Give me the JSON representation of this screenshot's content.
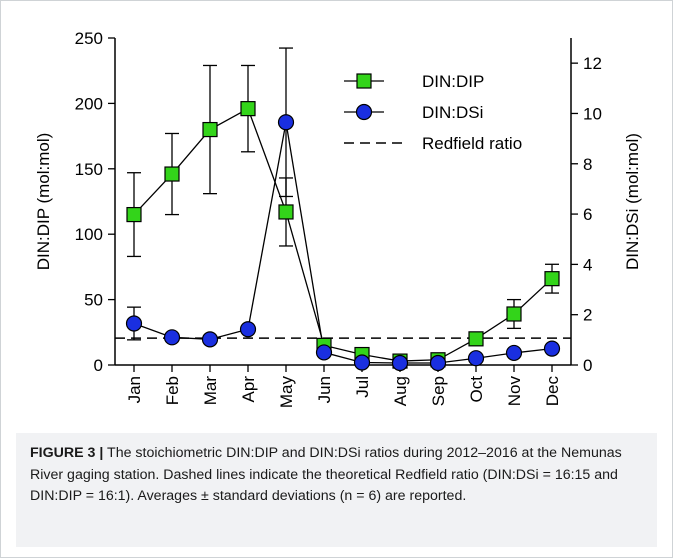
{
  "figure": {
    "caption_label": "FIGURE 3 |",
    "caption_text": "The stoichiometric DIN:DIP and DIN:DSi ratios during 2012–2016 at the Nemunas River gaging station. Dashed lines indicate the theoretical Redfield ratio (DIN:DSi = 16:15 and DIN:DIP = 16:1). Averages ± standard deviations (n = 6) are reported."
  },
  "chart_data": {
    "type": "line",
    "categories": [
      "Jan",
      "Feb",
      "Mar",
      "Apr",
      "May",
      "Jun",
      "Jul",
      "Aug",
      "Sep",
      "Oct",
      "Nov",
      "Dec"
    ],
    "left_axis": {
      "label": "DIN:DIP (mol:mol)",
      "ylim": [
        0,
        250
      ],
      "ticks": [
        0,
        50,
        100,
        150,
        200,
        250
      ]
    },
    "right_axis": {
      "label": "DIN:DSi (mol:mol)",
      "ylim": [
        0,
        13
      ],
      "ticks": [
        0,
        2,
        4,
        6,
        8,
        10,
        12
      ]
    },
    "series": [
      {
        "name": "DIN:DIP",
        "axis": "left",
        "marker": "square",
        "color": "#33d41a",
        "values": [
          115,
          146,
          180,
          196,
          117,
          15,
          8,
          3,
          4,
          20,
          39,
          66
        ],
        "errors": [
          32,
          31,
          49,
          33,
          26,
          5,
          3,
          1,
          1,
          4,
          11,
          11
        ]
      },
      {
        "name": "DIN:DSi",
        "axis": "right",
        "marker": "circle",
        "color": "#1a2fe0",
        "values": [
          1.65,
          1.1,
          1.02,
          1.42,
          9.65,
          0.5,
          0.1,
          0.08,
          0.08,
          0.27,
          0.48,
          0.65
        ],
        "errors": [
          0.65,
          0,
          0,
          0,
          2.95,
          0,
          0,
          0,
          0,
          0,
          0,
          0
        ]
      }
    ],
    "reference_line": {
      "name": "Redfield ratio",
      "axis": "right",
      "value": 1.0667,
      "style": "dashed"
    },
    "legend": "top-right",
    "grid": false
  }
}
